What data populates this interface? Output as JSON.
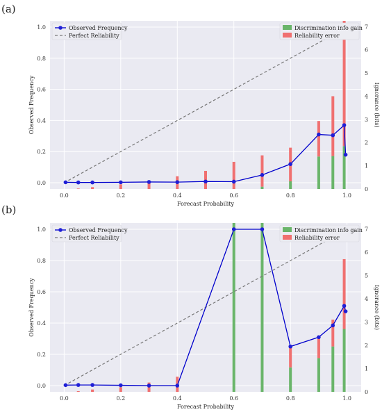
{
  "chart_data": [
    {
      "panel_label": "(a)",
      "type": "bar+line",
      "xlabel": "Forecast Probability",
      "ylabel": "Observed Frequency",
      "y2label": "Ignorance (bits)",
      "xlim": [
        -0.05,
        1.05
      ],
      "ylim": [
        -0.04,
        1.04
      ],
      "y2lim": [
        0,
        7.25
      ],
      "xticks": [
        "0.0",
        "0.2",
        "0.4",
        "0.6",
        "0.8",
        "1.0"
      ],
      "yticks": [
        "0.0",
        "0.2",
        "0.4",
        "0.6",
        "0.8",
        "1.0"
      ],
      "y2ticks": [
        "0",
        "1",
        "2",
        "3",
        "4",
        "5",
        "6",
        "7"
      ],
      "grid": true,
      "legend_left": [
        "Observed Frequency",
        "Perfect Reliability"
      ],
      "legend_right": [
        "Discrimination info gain",
        "Reliability error"
      ],
      "series": [
        {
          "name": "Observed Frequency",
          "x": [
            0.005,
            0.05,
            0.1,
            0.2,
            0.3,
            0.4,
            0.5,
            0.6,
            0.7,
            0.8,
            0.9,
            0.95,
            0.99,
            0.995
          ],
          "y": [
            0.003,
            0.002,
            0.002,
            0.003,
            0.005,
            0.004,
            0.008,
            0.007,
            0.05,
            0.12,
            0.31,
            0.305,
            0.37,
            0.18
          ]
        },
        {
          "name": "Perfect Reliability",
          "x": [
            0.0,
            1.0
          ],
          "y": [
            0.0,
            1.0
          ]
        }
      ],
      "bars": {
        "x": [
          0.05,
          0.1,
          0.2,
          0.3,
          0.4,
          0.5,
          0.6,
          0.7,
          0.8,
          0.9,
          0.95,
          0.99
        ],
        "discrimination_info_gain": [
          0.0,
          0.0,
          0.0,
          0.0,
          0.0,
          0.0,
          0.0,
          0.1,
          0.33,
          1.4,
          1.42,
          1.85
        ],
        "reliability_error": [
          0.02,
          0.08,
          0.2,
          0.32,
          0.55,
          0.78,
          1.17,
          1.35,
          1.45,
          1.53,
          2.58,
          5.55
        ]
      }
    },
    {
      "panel_label": "(b)",
      "type": "bar+line",
      "xlabel": "Forecast Probability",
      "ylabel": "Observed Frequency",
      "y2label": "Ignorance (bits)",
      "xlim": [
        -0.05,
        1.05
      ],
      "ylim": [
        -0.04,
        1.04
      ],
      "y2lim": [
        0,
        7.25
      ],
      "xticks": [
        "0.0",
        "0.2",
        "0.4",
        "0.6",
        "0.8",
        "1.0"
      ],
      "yticks": [
        "0.0",
        "0.2",
        "0.4",
        "0.6",
        "0.8",
        "1.0"
      ],
      "y2ticks": [
        "0",
        "1",
        "2",
        "3",
        "4",
        "5",
        "6",
        "7"
      ],
      "grid": true,
      "legend_left": [
        "Observed Frequency",
        "Perfect Reliability"
      ],
      "legend_right": [
        "Discrimination info gain",
        "Reliability error"
      ],
      "series": [
        {
          "name": "Observed Frequency",
          "x": [
            0.005,
            0.05,
            0.1,
            0.2,
            0.3,
            0.4,
            0.6,
            0.7,
            0.8,
            0.9,
            0.95,
            0.99,
            0.995
          ],
          "y": [
            0.003,
            0.004,
            0.004,
            0.002,
            0.0,
            0.0,
            1.0,
            1.0,
            0.25,
            0.31,
            0.385,
            0.51,
            0.475
          ]
        },
        {
          "name": "Perfect Reliability",
          "x": [
            0.0,
            1.0
          ],
          "y": [
            0.0,
            1.0
          ]
        }
      ],
      "bars": {
        "x": [
          0.05,
          0.1,
          0.2,
          0.3,
          0.4,
          0.6,
          0.7,
          0.8,
          0.9,
          0.95,
          0.99
        ],
        "discrimination_info_gain": [
          0.0,
          0.0,
          0.0,
          0.0,
          0.0,
          7.25,
          7.25,
          1.05,
          1.45,
          1.95,
          2.7
        ],
        "reliability_error": [
          0.03,
          0.1,
          0.2,
          0.4,
          0.65,
          0.0,
          0.0,
          0.9,
          0.85,
          1.15,
          3.0
        ]
      }
    }
  ]
}
